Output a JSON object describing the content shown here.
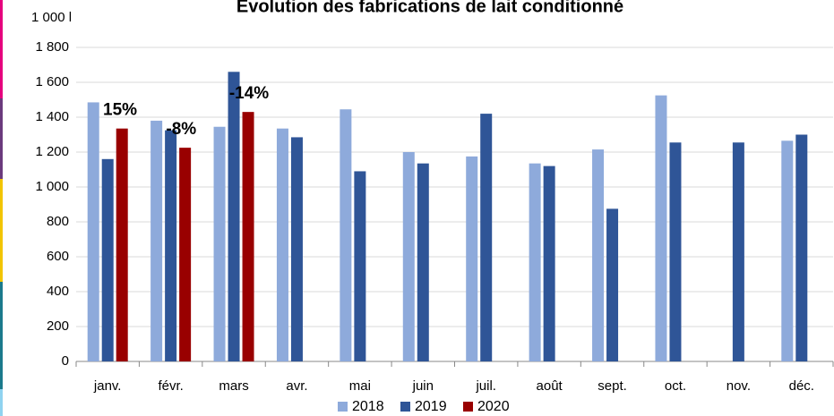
{
  "chart_data": {
    "type": "bar",
    "title": "Évolution des fabrications de lait conditionné",
    "y_unit": "1 000 l",
    "categories": [
      "janv.",
      "févr.",
      "mars",
      "avr.",
      "mai",
      "juin",
      "juil.",
      "août",
      "sept.",
      "oct.",
      "nov.",
      "déc."
    ],
    "series": [
      {
        "name": "2018",
        "color": "#8eaadb",
        "values": [
          1485,
          1380,
          1345,
          1335,
          1445,
          1200,
          1175,
          1135,
          1215,
          1525,
          null,
          1265
        ]
      },
      {
        "name": "2019",
        "color": "#2f5597",
        "values": [
          1160,
          1325,
          1660,
          1285,
          1090,
          1135,
          1420,
          1120,
          875,
          1255,
          1255,
          1300
        ]
      },
      {
        "name": "2020",
        "color": "#990000",
        "values": [
          1335,
          1225,
          1430,
          null,
          null,
          null,
          null,
          null,
          null,
          null,
          null,
          null
        ]
      }
    ],
    "annotations": [
      {
        "text": "15%",
        "category": "janv."
      },
      {
        "text": "-8%",
        "category": "févr."
      },
      {
        "text": "-14%",
        "category": "mars"
      }
    ],
    "ylim": [
      0,
      1800
    ],
    "yticks": [
      0,
      200,
      400,
      600,
      800,
      {
        "value": 1000,
        "label": "1 000"
      },
      {
        "value": 1200,
        "label": "1 200"
      },
      {
        "value": 1400,
        "label": "1 400"
      },
      {
        "value": 1600,
        "label": "1 600"
      },
      {
        "value": 1800,
        "label": "1 800"
      }
    ],
    "grid": true,
    "legend": "bottom"
  }
}
